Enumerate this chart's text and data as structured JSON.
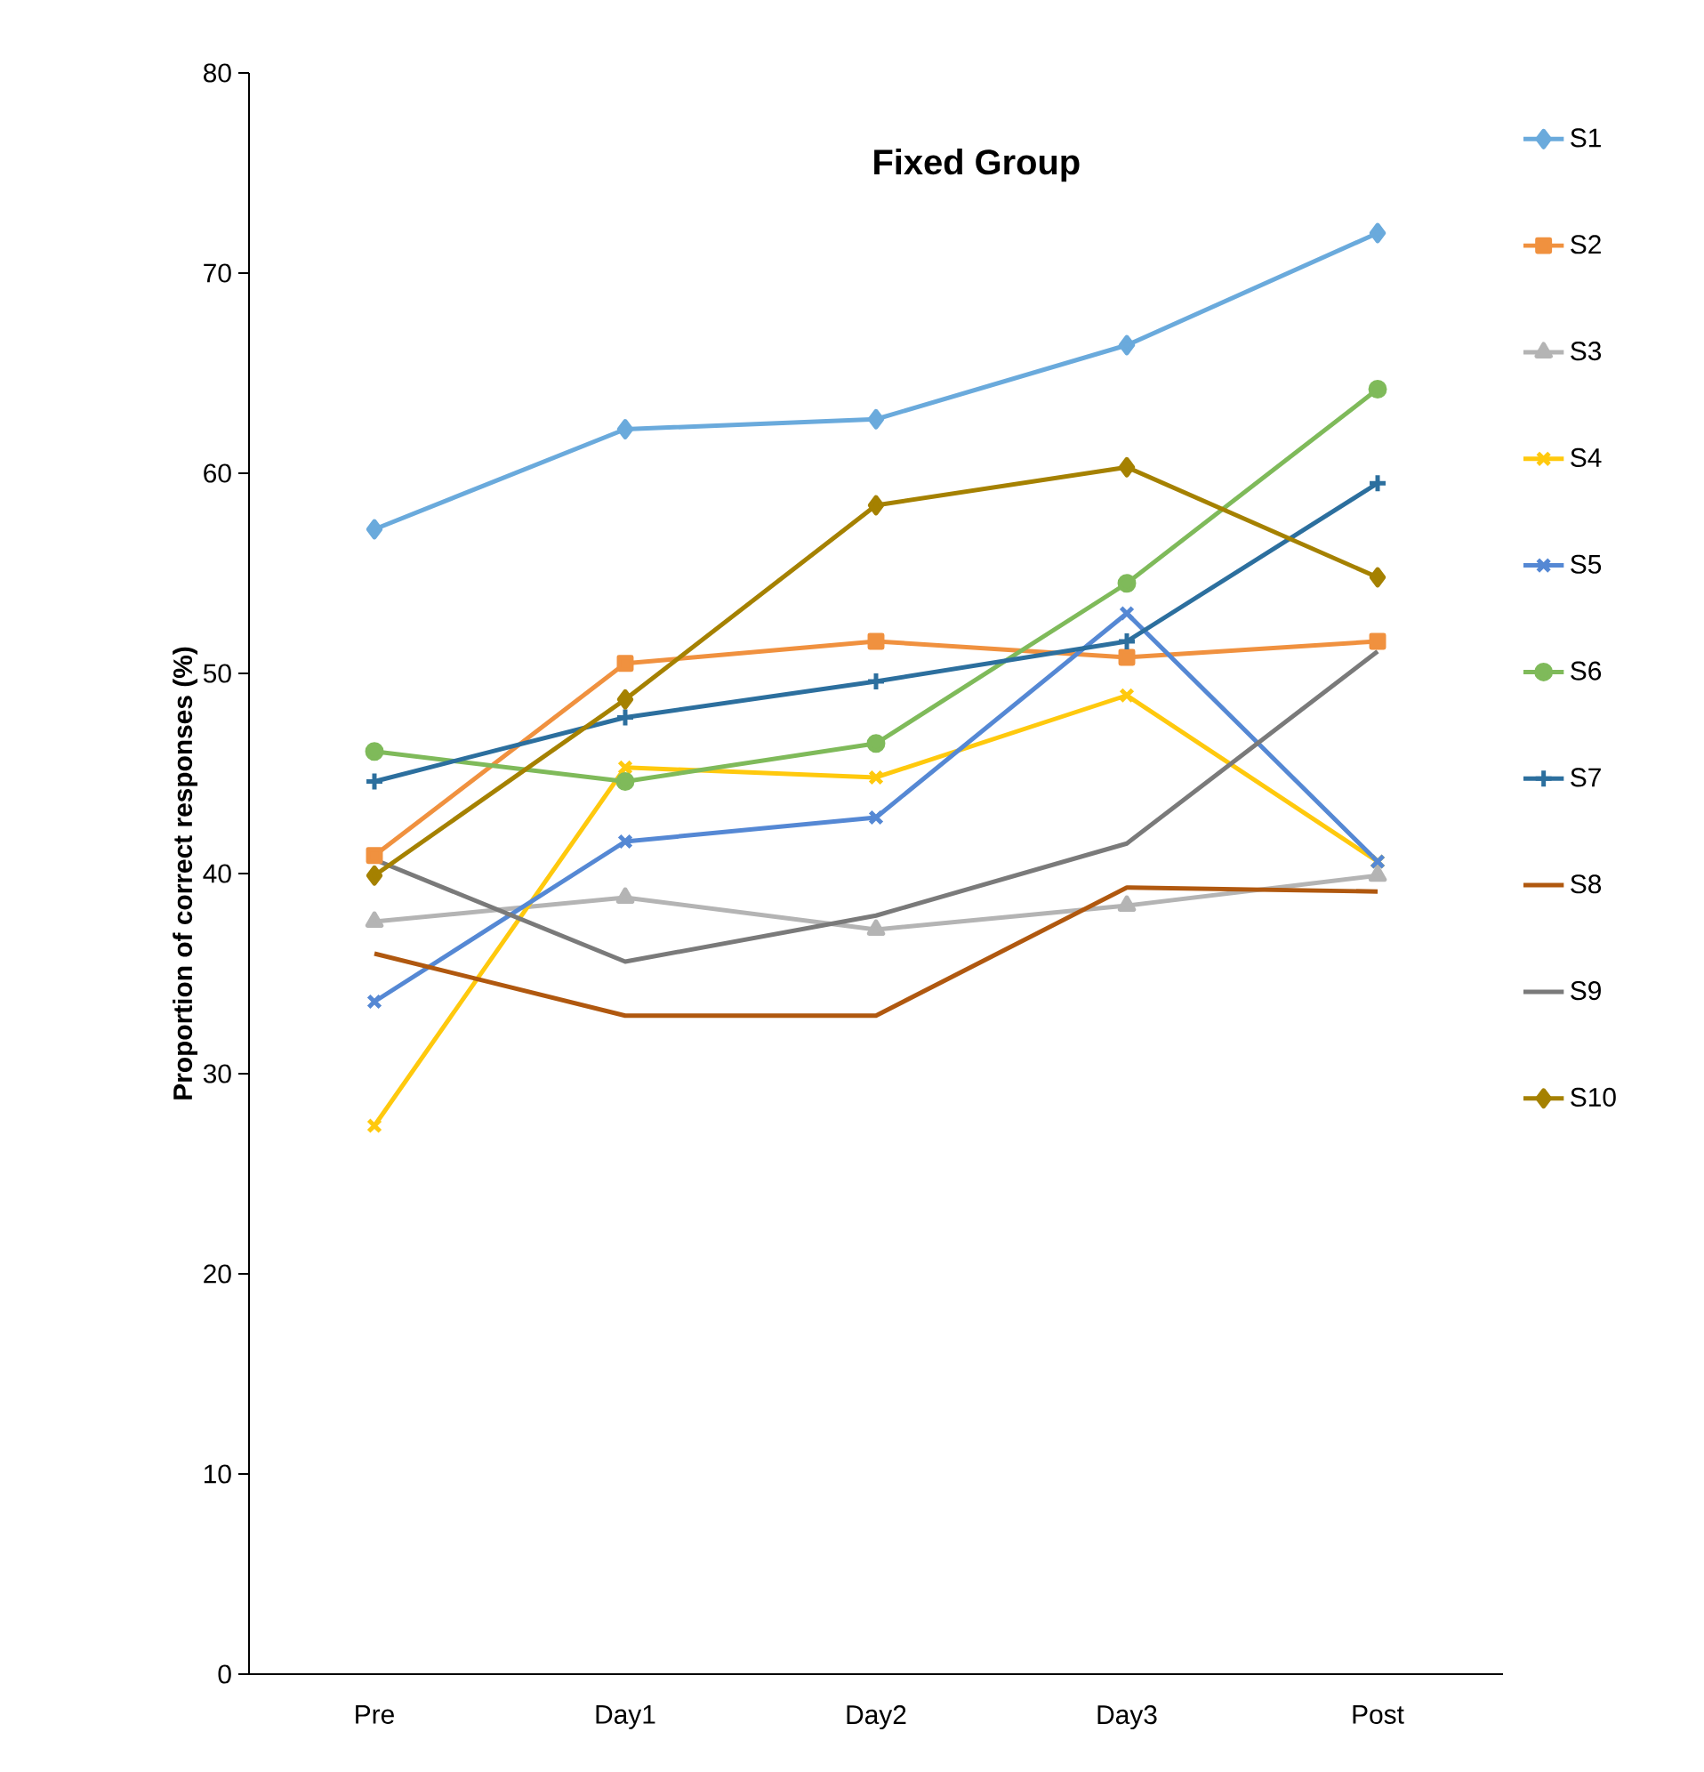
{
  "chart_data": {
    "type": "line",
    "title": "Fixed Group",
    "ylabel": "Proportion of correct responses (%)",
    "categories": [
      "Pre",
      "Day1",
      "Day2",
      "Day3",
      "Post"
    ],
    "ylim": [
      0,
      80
    ],
    "yticks": [
      0,
      10,
      20,
      30,
      40,
      50,
      60,
      70,
      80
    ],
    "grid": false,
    "legend": "right",
    "line_style": "solid",
    "series": [
      {
        "name": "S1",
        "color": "#6aaadc",
        "marker": "diamond",
        "values": [
          57.2,
          62.2,
          62.7,
          66.4,
          72.0
        ]
      },
      {
        "name": "S2",
        "color": "#f0913f",
        "marker": "square",
        "values": [
          40.9,
          50.5,
          51.6,
          50.8,
          51.6
        ]
      },
      {
        "name": "S3",
        "color": "#b4b4b4",
        "marker": "triangle",
        "values": [
          37.6,
          38.8,
          37.2,
          38.4,
          39.9
        ]
      },
      {
        "name": "S4",
        "color": "#ffc90d",
        "marker": "cross",
        "values": [
          27.4,
          45.3,
          44.8,
          48.9,
          40.6
        ]
      },
      {
        "name": "S5",
        "color": "#5588d4",
        "marker": "cross",
        "values": [
          33.6,
          41.6,
          42.8,
          53.0,
          40.6
        ]
      },
      {
        "name": "S6",
        "color": "#7fba5a",
        "marker": "circle",
        "values": [
          46.1,
          44.6,
          46.5,
          54.5,
          64.2
        ]
      },
      {
        "name": "S7",
        "color": "#2c6f9e",
        "marker": "plus",
        "values": [
          44.6,
          47.8,
          49.6,
          51.6,
          59.5
        ]
      },
      {
        "name": "S8",
        "color": "#b0580f",
        "marker": "none",
        "values": [
          36.0,
          32.9,
          32.9,
          39.3,
          39.1
        ]
      },
      {
        "name": "S9",
        "color": "#7a7a7a",
        "marker": "none",
        "values": [
          40.7,
          35.6,
          37.9,
          41.5,
          51.1
        ]
      },
      {
        "name": "S10",
        "color": "#a58100",
        "marker": "diamond",
        "values": [
          39.9,
          48.7,
          58.4,
          60.3,
          54.8
        ]
      }
    ]
  }
}
